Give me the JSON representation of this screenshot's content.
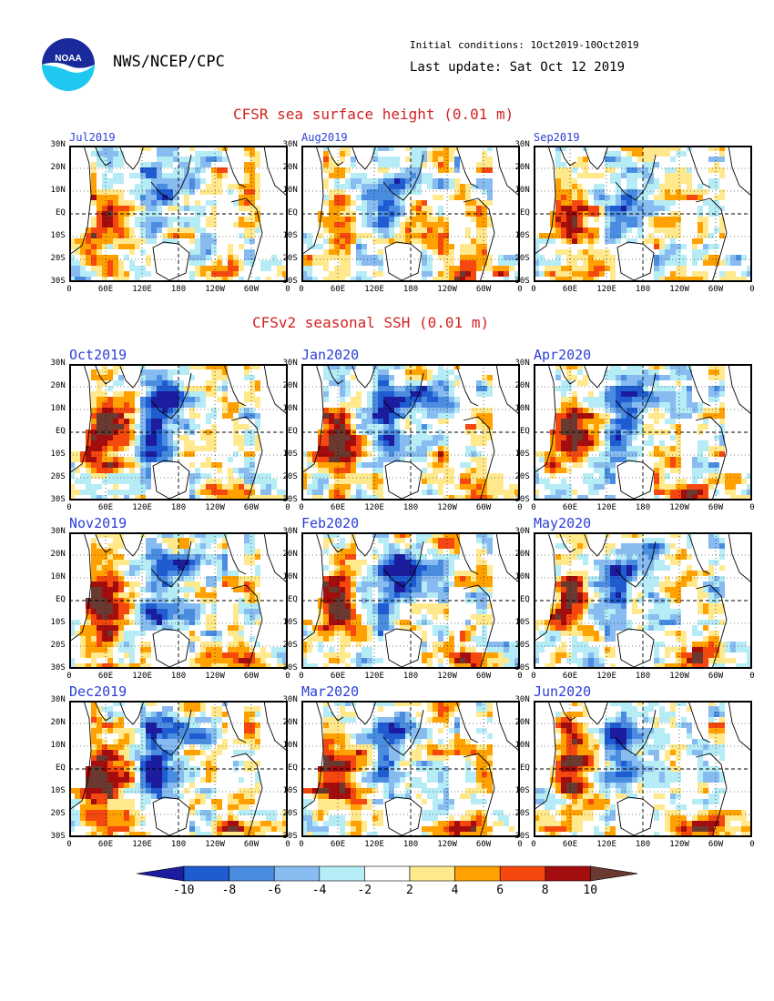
{
  "header": {
    "agency": "NWS/NCEP/CPC",
    "logo_text": "NOAA",
    "initial_conditions": "Initial conditions: 1Oct2019-10Oct2019",
    "last_update": "Last update: Sat Oct 12 2019"
  },
  "sections": {
    "observed_title": "CFSR sea surface height (0.01 m)",
    "forecast_title": "CFSv2 seasonal SSH (0.01 m)"
  },
  "axes": {
    "lat_ticks": [
      "30N",
      "20N",
      "10N",
      "EQ",
      "10S",
      "20S",
      "30S"
    ],
    "lon_ticks": [
      "0",
      "60E",
      "120E",
      "180",
      "120W",
      "60W",
      "0"
    ]
  },
  "panels": {
    "observed": [
      "Jul2019",
      "Aug2019",
      "Sep2019"
    ],
    "forecast": [
      [
        "Oct2019",
        "Jan2020",
        "Apr2020"
      ],
      [
        "Nov2019",
        "Feb2020",
        "May2020"
      ],
      [
        "Dec2019",
        "Mar2020",
        "Jun2020"
      ]
    ]
  },
  "colorbar": {
    "labels": [
      "-10",
      "-8",
      "-6",
      "-4",
      "-2",
      "2",
      "4",
      "6",
      "8",
      "10"
    ],
    "colors": [
      "#1c1c9e",
      "#1f5bd1",
      "#4a8de0",
      "#88bbef",
      "#b5ecf6",
      "#ffffff",
      "#ffe98c",
      "#ffa100",
      "#f5480e",
      "#a30d0d",
      "#6a3a30"
    ]
  },
  "map_colors": {
    "land": "#ffffff",
    "coast": "#000000"
  }
}
